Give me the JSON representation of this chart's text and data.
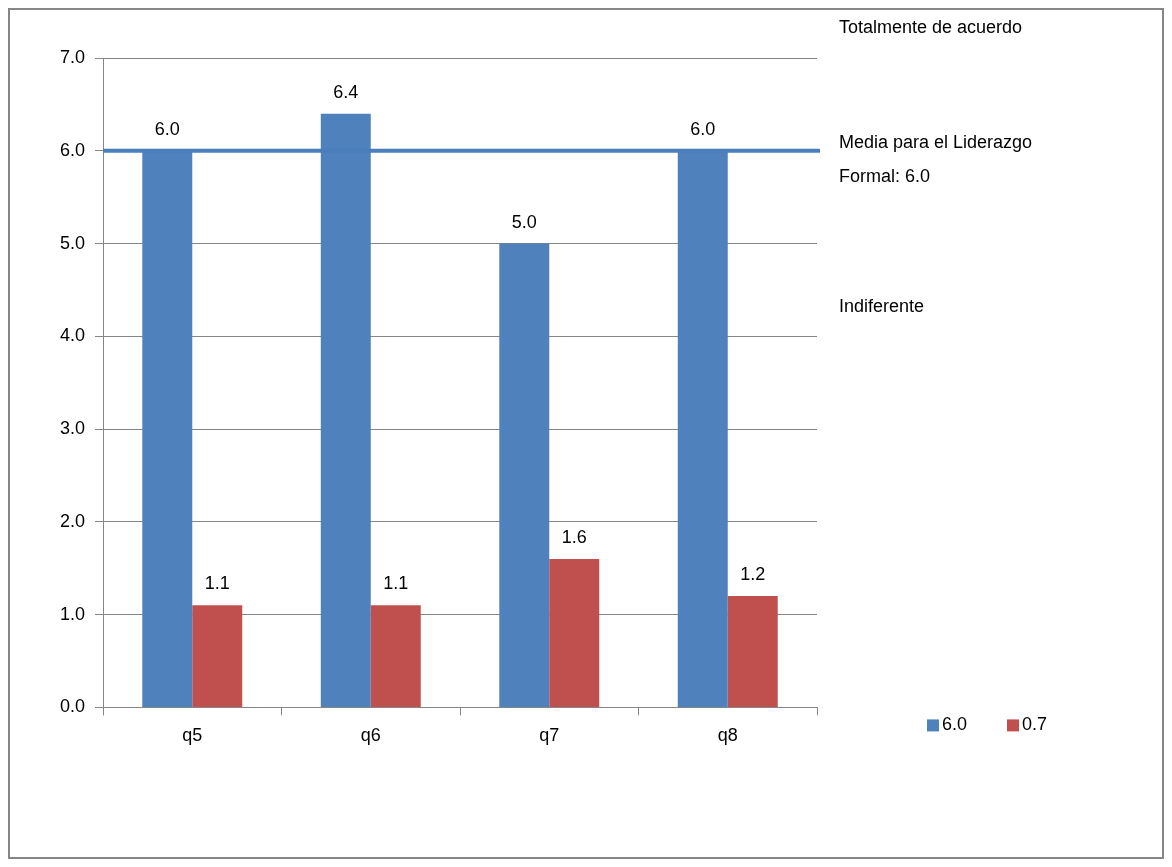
{
  "chart_data": {
    "type": "bar",
    "categories": [
      "q5",
      "q6",
      "q7",
      "q8"
    ],
    "series": [
      {
        "name": "6.0",
        "color": "#4f81bd",
        "values": [
          6.0,
          6.4,
          5.0,
          6.0
        ],
        "value_labels": [
          "6.0",
          "6.4",
          "5.0",
          "6.0"
        ]
      },
      {
        "name": "0.7",
        "color": "#c0504d",
        "values": [
          1.1,
          1.1,
          1.6,
          1.2
        ],
        "value_labels": [
          "1.1",
          "1.1",
          "1.6",
          "1.2"
        ]
      }
    ],
    "ylim": [
      0,
      7
    ],
    "yticks": [
      {
        "value": 0,
        "label": "0.0"
      },
      {
        "value": 1,
        "label": "1.0"
      },
      {
        "value": 2,
        "label": "2.0"
      },
      {
        "value": 3,
        "label": "3.0"
      },
      {
        "value": 4,
        "label": "4.0"
      },
      {
        "value": 5,
        "label": "5.0"
      },
      {
        "value": 6,
        "label": "6.0"
      },
      {
        "value": 7,
        "label": "7.0"
      }
    ],
    "grid": "y",
    "legend": "bottom right",
    "ref_lines": [
      {
        "axis": "y",
        "value": 6.0,
        "label": "Media para el Liderazgo Formal: 6.0",
        "color": "#4a7ebb"
      }
    ],
    "annotations": [
      "Totalmente de acuerdo",
      "Indiferente"
    ]
  }
}
